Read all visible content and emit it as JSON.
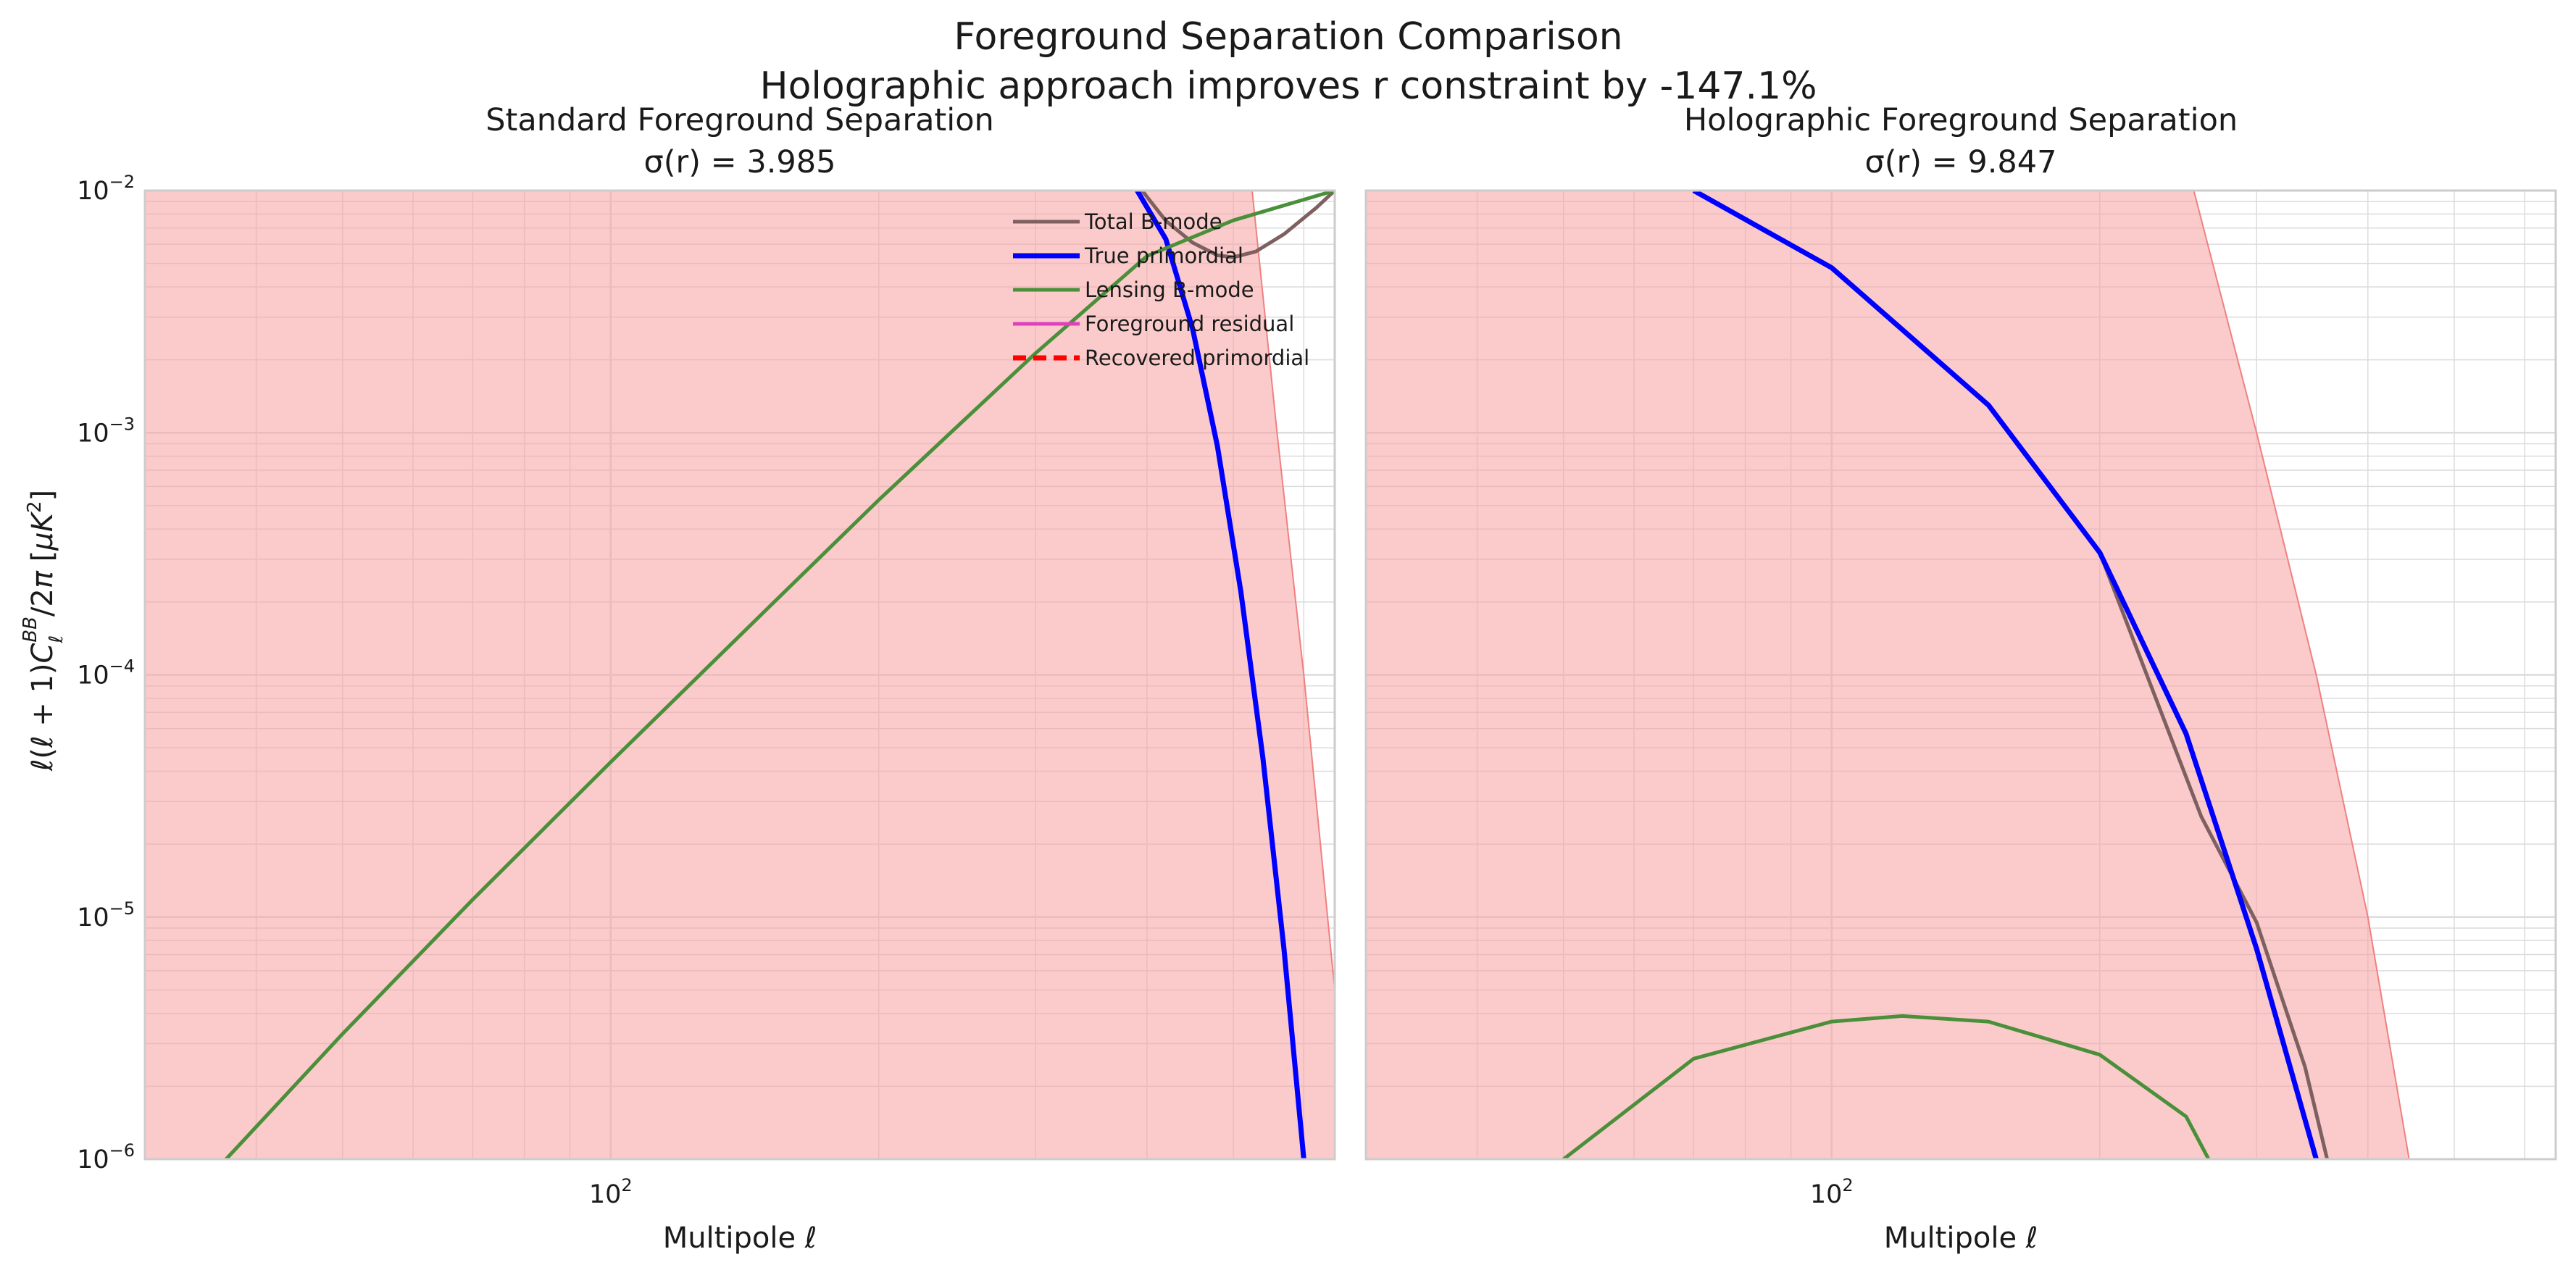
{
  "figure": {
    "title_line1": "Foreground Separation Comparison",
    "title_line2": "Holographic approach improves r constraint by -147.1%",
    "ylabel": "ℓ(ℓ + 1)C_ℓ^BB/2π [μK²]",
    "colors": {
      "total": "#7f6060",
      "primordial": "#0000ff",
      "lensing": "#4a8f3a",
      "foreground": "#e040c0",
      "recovered": "#ff0000",
      "band": "#f8a0a0",
      "band_edge": "#f08080",
      "grid": "#dcdcdc"
    }
  },
  "chart_data": [
    {
      "type": "line",
      "title": "Standard Foreground Separation",
      "subtitle": "σ(r) = 3.985",
      "xlabel": "Multipole ℓ",
      "ylabel": "ℓ(ℓ + 1)C_ℓ^BB/2π [μK²]",
      "xscale": "log",
      "yscale": "log",
      "xlim": [
        30,
        650
      ],
      "ylim": [
        1e-06,
        0.01
      ],
      "xticks": [
        {
          "value": 100,
          "label": "10^2"
        }
      ],
      "yticks": [
        {
          "value": 1e-06,
          "label": "10^-6"
        },
        {
          "value": 1e-05,
          "label": "10^-5"
        },
        {
          "value": 0.0001,
          "label": "10^-4"
        },
        {
          "value": 0.001,
          "label": "10^-3"
        },
        {
          "value": 0.01,
          "label": "10^-2"
        }
      ],
      "grid": true,
      "legend": {
        "placement": "top-right",
        "entries": [
          "Total B-mode",
          "True primordial",
          "Lensing B-mode",
          "Foreground residual",
          "Recovered primordial"
        ]
      },
      "series": [
        {
          "name": "Total B-mode",
          "x": [
            395,
            420,
            450,
            480,
            500,
            530,
            570,
            620,
            650
          ],
          "y": [
            0.01,
            0.0075,
            0.0061,
            0.0054,
            0.0053,
            0.0056,
            0.0066,
            0.0085,
            0.01
          ]
        },
        {
          "name": "True primordial",
          "x": [
            390,
            420,
            450,
            480,
            510,
            540,
            570,
            600
          ],
          "y": [
            0.01,
            0.0063,
            0.0027,
            0.00088,
            0.00022,
            4.5e-05,
            7.4e-06,
            1e-06
          ]
        },
        {
          "name": "Lensing B-mode",
          "x": [
            37,
            50,
            70,
            100,
            150,
            200,
            300,
            400,
            500,
            650
          ],
          "y": [
            1e-06,
            3.29e-06,
            1.18e-05,
            4.36e-05,
            0.000188,
            0.000528,
            0.00213,
            0.00536,
            0.00753,
            0.01
          ]
        },
        {
          "name": "Foreground residual",
          "x": [],
          "y": []
        },
        {
          "name": "Recovered primordial",
          "x": [],
          "y": []
        }
      ],
      "band": {
        "x": [
          30,
          400,
          525,
          560,
          600,
          650
        ],
        "upper": [
          0.01,
          0.01,
          0.01,
          0.001,
          0.0001,
          5e-06
        ],
        "lower": [
          1e-06,
          1e-06,
          1e-06,
          1e-06,
          1e-06,
          1e-06
        ]
      }
    },
    {
      "type": "line",
      "title": "Holographic Foreground Separation",
      "subtitle": "σ(r) = 9.847",
      "xlabel": "Multipole ℓ",
      "xscale": "log",
      "yscale": "log",
      "xlim": [
        30,
        650
      ],
      "ylim": [
        1e-06,
        0.01
      ],
      "xticks": [
        {
          "value": 100,
          "label": "10^2"
        }
      ],
      "grid": true,
      "series": [
        {
          "name": "Total B-mode",
          "x": [
            200,
            260,
            300,
            340,
            360
          ],
          "y": [
            0.00032,
            2.6e-05,
            9.5e-06,
            2.4e-06,
            1e-06
          ]
        },
        {
          "name": "True primordial",
          "x": [
            70,
            100,
            150,
            200,
            250,
            300,
            350
          ],
          "y": [
            0.01,
            0.0048,
            0.0013,
            0.00032,
            5.71e-05,
            7.4e-06,
            1e-06
          ]
        },
        {
          "name": "Lensing B-mode",
          "x": [
            50,
            70,
            100,
            120,
            150,
            200,
            250,
            265
          ],
          "y": [
            1e-06,
            2.6e-06,
            3.7e-06,
            3.9e-06,
            3.7e-06,
            2.7e-06,
            1.5e-06,
            1e-06
          ]
        }
      ],
      "band": {
        "x": [
          30,
          255,
          300,
          350,
          400,
          445
        ],
        "upper": [
          0.01,
          0.01,
          0.001,
          0.0001,
          1e-05,
          1e-06
        ],
        "lower": [
          1e-06,
          1e-06,
          1e-06,
          1e-06,
          1e-06,
          1e-06
        ]
      }
    }
  ]
}
